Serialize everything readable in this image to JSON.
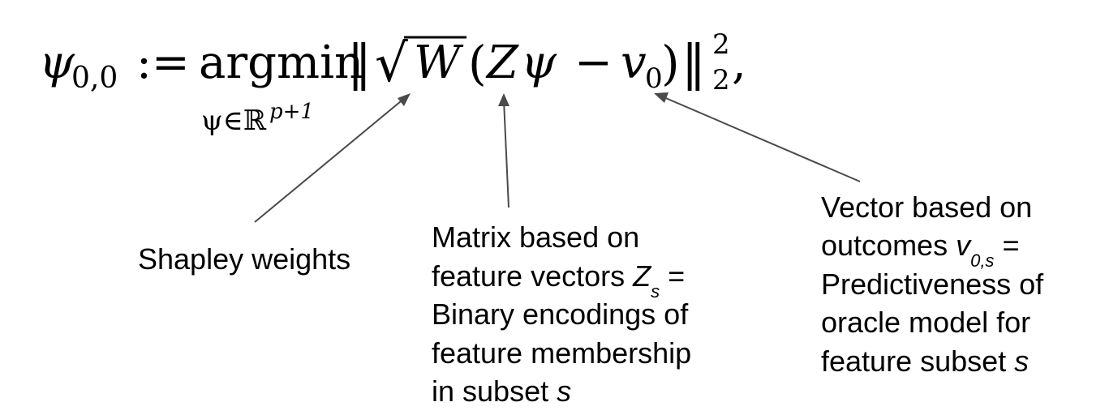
{
  "equation": {
    "lhs": "ψ",
    "lhs_subscript": "0,0",
    "assign": ":=",
    "operator": "argmin",
    "operator_subscript": "ψ∈ℝ",
    "operator_subscript_sup": "p+1",
    "norm_open": "‖",
    "sqrt_symbol": "√",
    "weight_matrix": "W",
    "paren_open": "(",
    "design_matrix": "Z",
    "coef": "ψ",
    "minus": "−",
    "target": "v",
    "target_subscript": "0",
    "paren_close": ")",
    "norm_close": "‖",
    "norm_sup": "2",
    "norm_sub": "2",
    "comma": ","
  },
  "annotations": {
    "weights": {
      "lines": [
        "Shapley weights"
      ]
    },
    "matrix": {
      "line1": "Matrix based on",
      "line2_text": "feature vectors ",
      "line2_var": "Z",
      "line2_sub": "s",
      "line2_eq": " =",
      "line3": "Binary encodings of",
      "line4": "feature membership",
      "line5_text": "in subset ",
      "line5_var": "s"
    },
    "vector": {
      "line1": "Vector based on",
      "line2_text": "outcomes ",
      "line2_var": "v",
      "line2_sub": "0,s",
      "line2_eq": " =",
      "line3": "Predictiveness of",
      "line4": "oracle model for",
      "line5_text": "feature subset ",
      "line5_var": "s"
    }
  },
  "colors": {
    "text": "#000000",
    "arrow": "#4a4a4a",
    "background": "#ffffff"
  }
}
